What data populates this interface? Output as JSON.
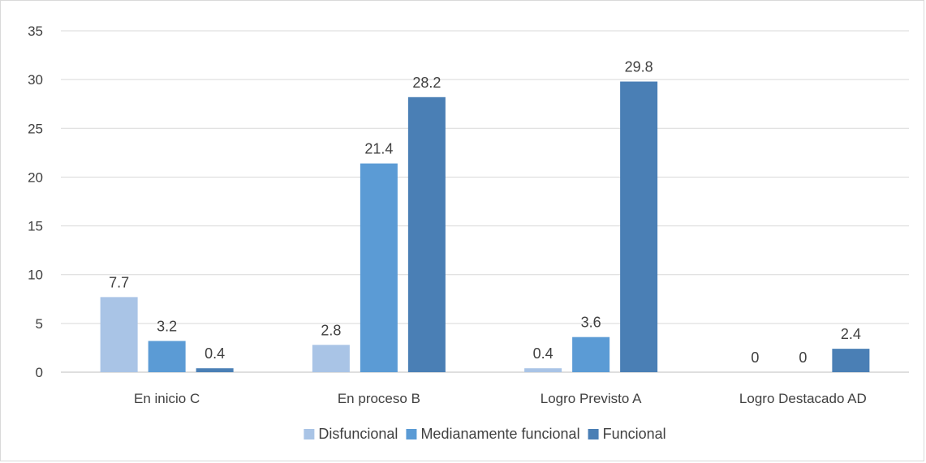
{
  "chart_data": {
    "type": "bar",
    "categories": [
      "En inicio C",
      "En proceso B",
      "Logro Previsto A",
      "Logro Destacado AD"
    ],
    "series": [
      {
        "name": "Disfuncional",
        "values": [
          7.7,
          2.8,
          0.4,
          0
        ],
        "color": "#a9c4e6"
      },
      {
        "name": "Medianamente funcional",
        "values": [
          3.2,
          21.4,
          3.6,
          0
        ],
        "color": "#5b9bd5"
      },
      {
        "name": "Funcional",
        "values": [
          0.4,
          28.2,
          29.8,
          2.4
        ],
        "color": "#4a7fb5"
      }
    ],
    "data_labels": [
      [
        "7.7",
        "2.8",
        "0.4",
        "0"
      ],
      [
        "3.2",
        "21.4",
        "3.6",
        "0"
      ],
      [
        "0.4",
        "28.2",
        "29.8",
        "2.4"
      ]
    ],
    "y_ticks": [
      0,
      5,
      10,
      15,
      20,
      25,
      30,
      35
    ],
    "ylim": [
      0,
      35
    ],
    "grid": true,
    "legend_position": "bottom",
    "title": "",
    "xlabel": "",
    "ylabel": ""
  }
}
